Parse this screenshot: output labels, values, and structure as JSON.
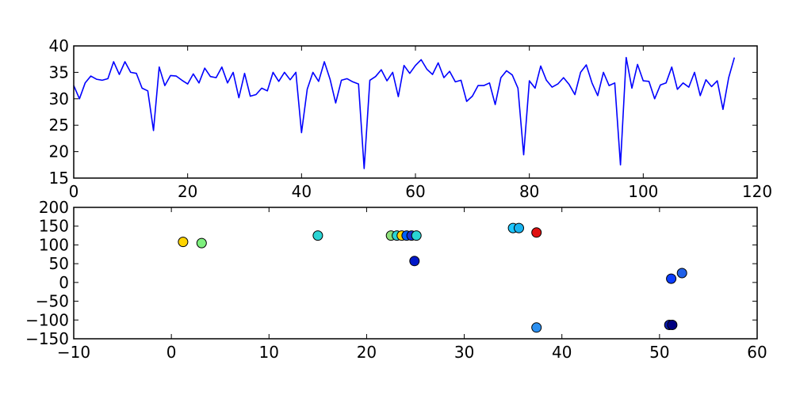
{
  "chart_data": [
    {
      "type": "line",
      "title": "",
      "xlabel": "",
      "ylabel": "",
      "xlim": [
        0,
        120
      ],
      "ylim": [
        15,
        40
      ],
      "xticks": [
        0,
        20,
        40,
        60,
        80,
        100,
        120
      ],
      "yticks": [
        15,
        20,
        25,
        30,
        35,
        40
      ],
      "grid": false,
      "line_color": "#0000ff",
      "series": [
        {
          "x": [
            0,
            1,
            2,
            3,
            4,
            5,
            6,
            7,
            8,
            9,
            10,
            11,
            12,
            13,
            14,
            15,
            16,
            17,
            18,
            19,
            20,
            21,
            22,
            23,
            24,
            25,
            26,
            27,
            28,
            29,
            30,
            31,
            32,
            33,
            34,
            35,
            36,
            37,
            38,
            39,
            40,
            41,
            42,
            43,
            44,
            45,
            46,
            47,
            48,
            49,
            50,
            51,
            52,
            53,
            54,
            55,
            56,
            57,
            58,
            59,
            60,
            61,
            62,
            63,
            64,
            65,
            66,
            67,
            68,
            69,
            70,
            71,
            72,
            73,
            74,
            75,
            76,
            77,
            78,
            79,
            80,
            81,
            82,
            83,
            84,
            85,
            86,
            87,
            88,
            89,
            90,
            91,
            92,
            93,
            94,
            95,
            96,
            97,
            98,
            99,
            100,
            101,
            102,
            103,
            104,
            105,
            106,
            107,
            108,
            109,
            110,
            111,
            112,
            113,
            114,
            115,
            116
          ],
          "y": [
            32.5,
            30.0,
            33.0,
            34.3,
            33.7,
            33.5,
            33.8,
            37.0,
            34.6,
            37.0,
            35.0,
            34.8,
            32.0,
            31.5,
            24.0,
            36.0,
            32.5,
            34.4,
            34.3,
            33.5,
            32.8,
            34.7,
            33.0,
            35.8,
            34.2,
            34.0,
            36.0,
            33.0,
            35.0,
            30.2,
            34.8,
            30.5,
            30.8,
            32.0,
            31.5,
            35.0,
            33.3,
            35.0,
            33.6,
            35.0,
            23.6,
            31.8,
            35.0,
            33.3,
            37.0,
            33.7,
            29.2,
            33.5,
            33.8,
            33.2,
            32.8,
            16.8,
            33.5,
            34.2,
            35.5,
            33.4,
            35.0,
            30.4,
            36.3,
            34.8,
            36.3,
            37.4,
            35.6,
            34.6,
            36.8,
            34.0,
            35.2,
            33.2,
            33.5,
            29.5,
            30.5,
            32.5,
            32.5,
            33.0,
            28.9,
            34.0,
            35.3,
            34.5,
            32.0,
            19.4,
            33.4,
            32.0,
            36.2,
            33.5,
            32.2,
            32.8,
            34.0,
            32.7,
            30.8,
            35.0,
            36.4,
            33.0,
            30.6,
            35.0,
            32.5,
            33.0,
            17.5,
            37.8,
            32.0,
            36.5,
            33.4,
            33.3,
            30.0,
            32.6,
            33.0,
            36.0,
            31.8,
            33.0,
            32.2,
            35.0,
            30.6,
            33.6,
            32.3,
            33.4,
            28.0,
            34.0,
            37.8
          ]
        }
      ]
    },
    {
      "type": "scatter",
      "title": "",
      "xlabel": "",
      "ylabel": "",
      "xlim": [
        -10,
        60
      ],
      "ylim": [
        -150,
        200
      ],
      "xticks": [
        -10,
        0,
        10,
        20,
        30,
        40,
        50,
        60
      ],
      "yticks": [
        -150,
        -100,
        -50,
        0,
        50,
        100,
        150,
        200
      ],
      "grid": false,
      "points": [
        {
          "x": 1.2,
          "y": 108,
          "color": "#ffd400"
        },
        {
          "x": 3.1,
          "y": 105,
          "color": "#7ef07e"
        },
        {
          "x": 15.0,
          "y": 125,
          "color": "#2ad4d4"
        },
        {
          "x": 22.5,
          "y": 125,
          "color": "#8ee07a"
        },
        {
          "x": 23.1,
          "y": 125,
          "color": "#2ad4d4"
        },
        {
          "x": 23.6,
          "y": 125,
          "color": "#ffd400"
        },
        {
          "x": 24.1,
          "y": 125,
          "color": "#0060ff"
        },
        {
          "x": 24.6,
          "y": 125,
          "color": "#1a2fd0"
        },
        {
          "x": 25.1,
          "y": 125,
          "color": "#2ad4d4"
        },
        {
          "x": 24.9,
          "y": 57,
          "color": "#0018c8"
        },
        {
          "x": 35.0,
          "y": 145,
          "color": "#1ec8ff"
        },
        {
          "x": 35.6,
          "y": 145,
          "color": "#19b4f0"
        },
        {
          "x": 37.4,
          "y": 133,
          "color": "#e01010"
        },
        {
          "x": 37.4,
          "y": -120,
          "color": "#2a8ff0"
        },
        {
          "x": 51.2,
          "y": 10,
          "color": "#0a3cff"
        },
        {
          "x": 52.3,
          "y": 25,
          "color": "#2060e8"
        },
        {
          "x": 51.0,
          "y": -113,
          "color": "#0a1cb0"
        },
        {
          "x": 51.3,
          "y": -113,
          "color": "#000080"
        }
      ]
    }
  ]
}
